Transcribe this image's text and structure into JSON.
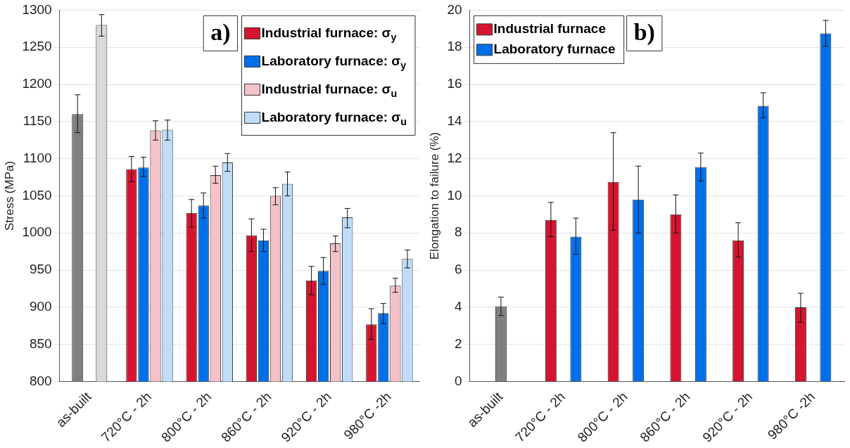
{
  "chart_data": [
    {
      "type": "bar",
      "ylabel": "Stress (MPa)",
      "categories": [
        "as-built",
        "720°C - 2h",
        "800°C - 2h",
        "860°C - 2h",
        "920°C - 2h",
        "980°C -2h"
      ],
      "ylim": [
        800,
        1300
      ],
      "yticks": [
        800,
        850,
        900,
        950,
        1000,
        1050,
        1100,
        1150,
        1200,
        1250,
        1300
      ],
      "grid": "y",
      "legend": "top right",
      "annotations": [
        "a)"
      ],
      "series": [
        {
          "color": "#808080",
          "values": [
            1160,
            null,
            null,
            null,
            null,
            null
          ],
          "errors": [
            [
              1135,
              1186
            ],
            null,
            null,
            null,
            null,
            null
          ]
        },
        {
          "color": "#d9d9d9",
          "values": [
            1280,
            null,
            null,
            null,
            null,
            null
          ],
          "errors": [
            [
              1265,
              1294
            ],
            null,
            null,
            null,
            null,
            null
          ]
        },
        {
          "name": "Industrial furnace: σ$_{y}$",
          "color": "#d51530",
          "values": [
            null,
            1086,
            1027,
            997,
            936,
            877
          ],
          "errors": [
            null,
            [
              1069,
              1103
            ],
            [
              1008,
              1045
            ],
            [
              975,
              1019
            ],
            [
              917,
              955
            ],
            [
              857,
              898
            ]
          ]
        },
        {
          "name": "Laboratory furnace: σ$_{y}$",
          "color": "#0070e8",
          "values": [
            null,
            1088,
            1037,
            990,
            949,
            892
          ],
          "errors": [
            null,
            [
              1076,
              1102
            ],
            [
              1020,
              1054
            ],
            [
              975,
              1005
            ],
            [
              931,
              967
            ],
            [
              878,
              905
            ]
          ]
        },
        {
          "name": "Industrial furnace: σ$_{u}$",
          "color": "#f4c2c8",
          "values": [
            null,
            1138,
            1078,
            1050,
            986,
            929
          ],
          "errors": [
            null,
            [
              1125,
              1151
            ],
            [
              1067,
              1090
            ],
            [
              1038,
              1061
            ],
            [
              975,
              996
            ],
            [
              920,
              939
            ]
          ]
        },
        {
          "name": "Laboratory furnace: σ$_{u}$",
          "color": "#bfdcf8",
          "values": [
            null,
            1139,
            1095,
            1066,
            1021,
            965
          ],
          "errors": [
            null,
            [
              1125,
              1152
            ],
            [
              1083,
              1107
            ],
            [
              1050,
              1082
            ],
            [
              1007,
              1033
            ],
            [
              953,
              977
            ]
          ]
        }
      ]
    },
    {
      "type": "bar",
      "ylabel": "Elongation to failure (%)",
      "categories": [
        "as-built",
        "720°C - 2h",
        "800°C - 2h",
        "860°C - 2h",
        "920°C - 2h",
        "980°C -2h"
      ],
      "ylim": [
        0,
        20
      ],
      "yticks": [
        0,
        2,
        4,
        6,
        8,
        10,
        12,
        14,
        16,
        18,
        20
      ],
      "grid": "y",
      "legend": "top left",
      "annotations": [
        "b)"
      ],
      "series": [
        {
          "color": "#808080",
          "values": [
            4.05,
            null,
            null,
            null,
            null,
            null
          ],
          "errors": [
            [
              3.55,
              4.55
            ],
            null,
            null,
            null,
            null,
            null
          ]
        },
        {
          "name": "Industrial furnace",
          "color": "#d51530",
          "values": [
            null,
            8.7,
            10.75,
            9.0,
            7.6,
            4.0
          ],
          "errors": [
            null,
            [
              7.8,
              9.65
            ],
            [
              8.15,
              13.4
            ],
            [
              8.0,
              10.05
            ],
            [
              6.7,
              8.55
            ],
            [
              3.2,
              4.75
            ]
          ]
        },
        {
          "name": "Laboratory furnace",
          "color": "#0070e8",
          "values": [
            null,
            7.8,
            9.8,
            11.55,
            14.85,
            18.75
          ],
          "errors": [
            null,
            [
              6.85,
              8.8
            ],
            [
              8.0,
              11.6
            ],
            [
              10.8,
              12.3
            ],
            [
              14.2,
              15.55
            ],
            [
              18.05,
              19.45
            ]
          ]
        }
      ]
    }
  ]
}
